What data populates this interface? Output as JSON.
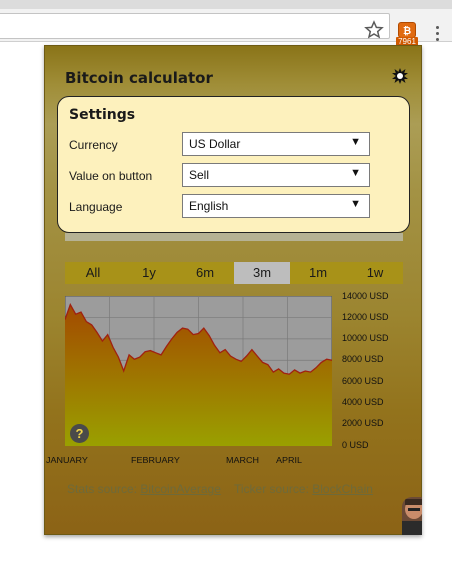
{
  "extension": {
    "badge": "7961",
    "icon": "bitcoin-icon"
  },
  "popup": {
    "title": "Bitcoin calculator",
    "settings": {
      "title": "Settings",
      "rows": [
        {
          "label": "Currency",
          "value": "US Dollar"
        },
        {
          "label": "Value on button",
          "value": "Sell"
        },
        {
          "label": "Language",
          "value": "English"
        }
      ]
    },
    "periods": [
      "All",
      "1y",
      "6m",
      "3m",
      "1m",
      "1w"
    ],
    "active_period": "3m",
    "footer": {
      "stats_prefix": "Stats source:",
      "stats_link": "BitcoinAverage",
      "ticker_prefix": "Ticker source:",
      "ticker_link": "BlockChain"
    },
    "help": "?"
  },
  "chart_data": {
    "type": "area",
    "y_tick_labels": [
      "14000 USD",
      "12000 USD",
      "10000 USD",
      "8000 USD",
      "6000 USD",
      "4000 USD",
      "2000 USD",
      "0 USD"
    ],
    "x_tick_labels": [
      "January",
      "February",
      "March",
      "April"
    ],
    "ylim": [
      0,
      14000
    ],
    "grid": true,
    "values": [
      11800,
      13200,
      12300,
      12500,
      11600,
      11300,
      10600,
      9800,
      10400,
      9200,
      8300,
      7000,
      8500,
      8100,
      8300,
      8800,
      8900,
      8700,
      8500,
      9300,
      10000,
      10600,
      11000,
      10900,
      10400,
      10500,
      11000,
      10300,
      9400,
      8700,
      9000,
      8400,
      8100,
      7900,
      8400,
      9000,
      8400,
      7800,
      7600,
      6900,
      7200,
      6800,
      6700,
      7100,
      6800,
      7000,
      6900,
      7300,
      7800,
      8100,
      8000
    ],
    "colors": {
      "line": "#a02010",
      "fill_top": "#a34a00",
      "fill_bottom": "#9aa000",
      "plot_bg": "#9c9c9c"
    }
  }
}
